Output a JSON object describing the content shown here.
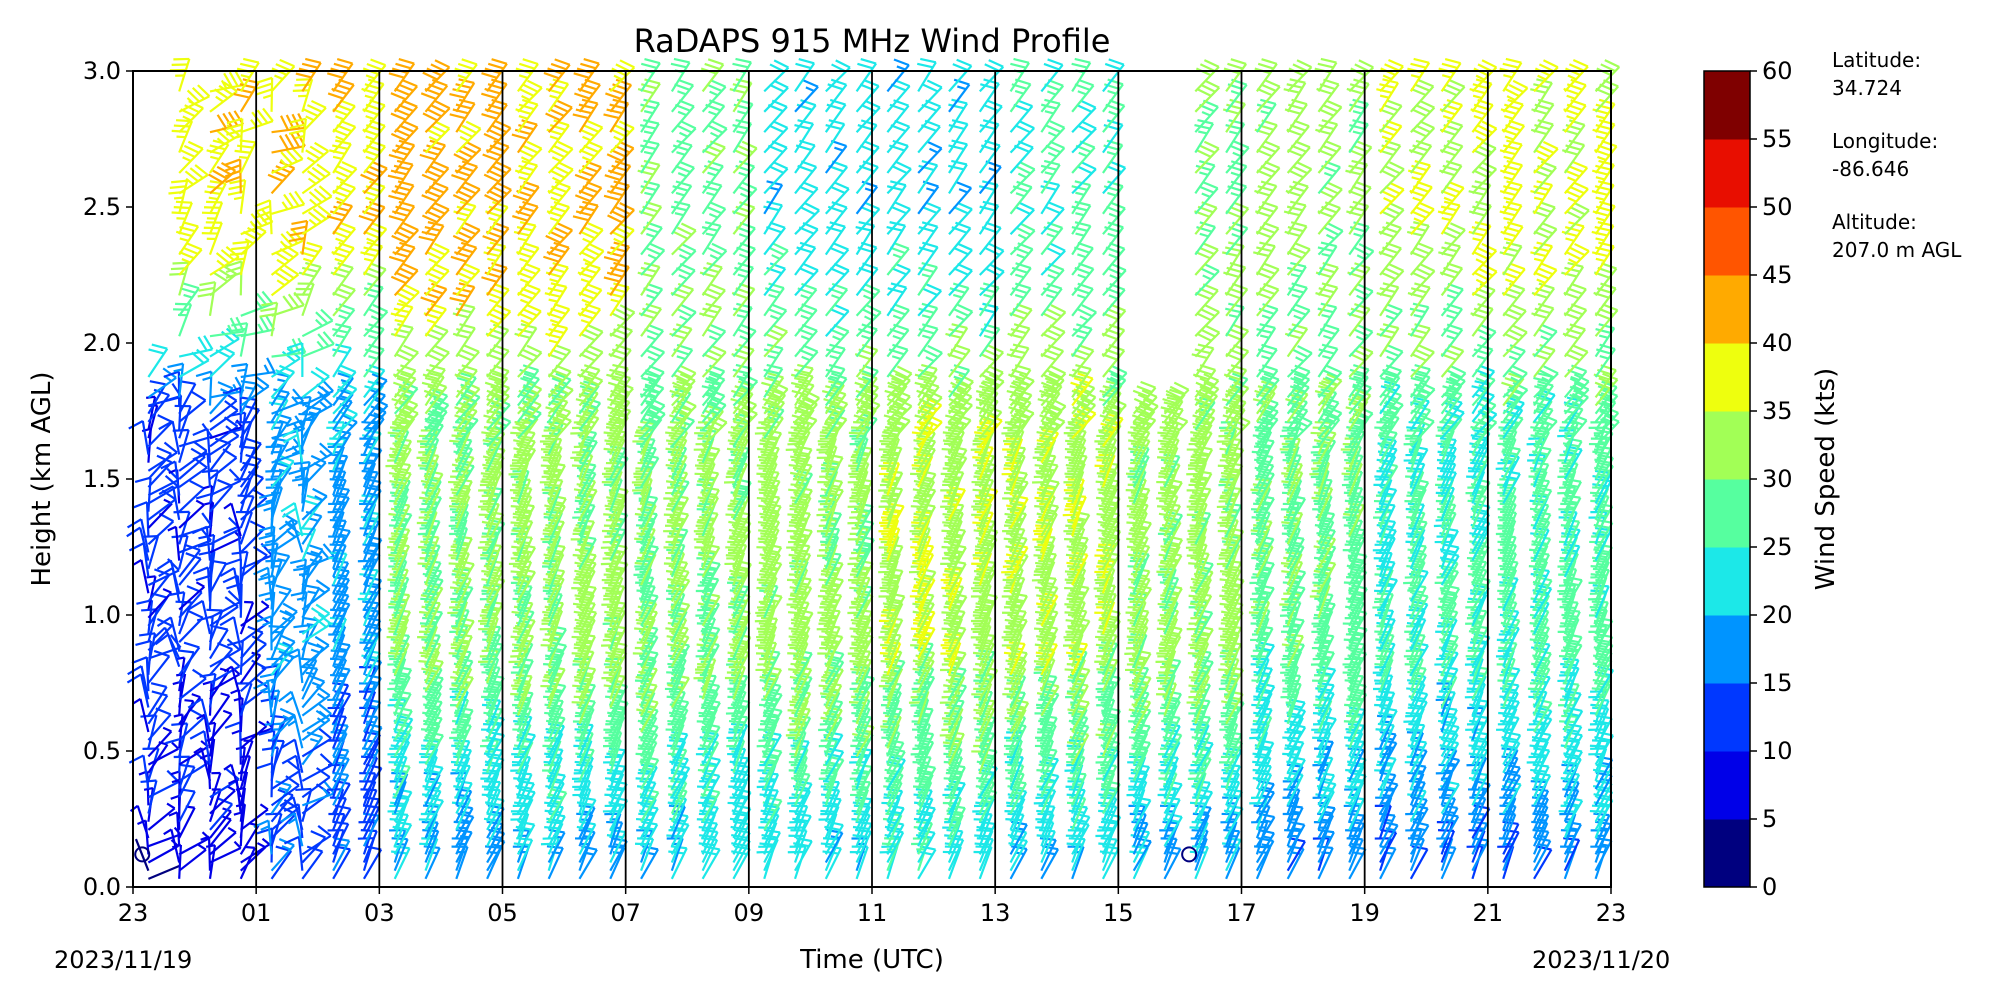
{
  "chart_data": {
    "type": "wind-barb profile",
    "title": "RaDAPS 915 MHz Wind Profile",
    "xlabel": "Time (UTC)",
    "ylabel": "Height (km AGL)",
    "x_tick_labels": [
      "23",
      "01",
      "03",
      "05",
      "07",
      "09",
      "11",
      "13",
      "15",
      "17",
      "19",
      "21",
      "23"
    ],
    "x_ticks_hours": [
      0,
      2,
      4,
      6,
      8,
      10,
      12,
      14,
      16,
      18,
      20,
      22,
      24
    ],
    "xlim_hours": [
      0,
      24
    ],
    "start_date_label": "2023/11/19",
    "end_date_label": "2023/11/20",
    "y_tick_labels": [
      "0.0",
      "0.5",
      "1.0",
      "1.5",
      "2.0",
      "2.5",
      "3.0"
    ],
    "ylim": [
      0,
      3.0
    ],
    "vertical_gridlines_hours": [
      2,
      4,
      6,
      8,
      10,
      12,
      14,
      16,
      18,
      20,
      22
    ],
    "colorbar": {
      "label": "Wind Speed (kts)",
      "ticks": [
        "0",
        "5",
        "10",
        "15",
        "20",
        "25",
        "30",
        "35",
        "40",
        "45",
        "50",
        "55",
        "60"
      ],
      "bins": [
        {
          "min": 0,
          "max": 5,
          "color": "#00007f"
        },
        {
          "min": 5,
          "max": 10,
          "color": "#0000e8"
        },
        {
          "min": 10,
          "max": 15,
          "color": "#0038ff"
        },
        {
          "min": 15,
          "max": 20,
          "color": "#0094ff"
        },
        {
          "min": 20,
          "max": 25,
          "color": "#1ce8e8"
        },
        {
          "min": 25,
          "max": 30,
          "color": "#56ff9f"
        },
        {
          "min": 30,
          "max": 35,
          "color": "#a2ff56"
        },
        {
          "min": 35,
          "max": 40,
          "color": "#eeff0e"
        },
        {
          "min": 40,
          "max": 45,
          "color": "#ffaa00"
        },
        {
          "min": 45,
          "max": 50,
          "color": "#ff5500"
        },
        {
          "min": 50,
          "max": 55,
          "color": "#e80e00"
        },
        {
          "min": 55,
          "max": 60,
          "color": "#7f0000"
        }
      ]
    },
    "columns_per_hour": 2,
    "column_offset_hours": 0.25,
    "profiles_top_km": [
      1.95,
      3.0,
      3.0,
      3.0,
      3.0,
      3.0,
      3.0,
      3.0,
      3.0,
      3.0,
      3.0,
      3.0,
      3.0,
      3.0,
      3.0,
      3.0,
      3.0,
      3.0,
      3.0,
      3.0,
      3.0,
      3.0,
      3.0,
      3.0,
      3.0,
      3.0,
      3.0,
      3.0,
      3.0,
      3.0,
      3.0,
      3.0,
      1.75,
      1.75,
      3.0,
      3.0,
      3.0,
      3.0,
      3.0,
      3.0,
      3.0,
      3.0,
      3.0,
      3.0,
      3.0,
      3.0,
      3.0,
      3.0
    ],
    "calm_markers": [
      {
        "hours": 0.15,
        "height_km": 0.12
      },
      {
        "hours": 17.15,
        "height_km": 0.12
      }
    ],
    "speed_profile_by_period": [
      {
        "hours": [
          0,
          2
        ],
        "low": 7,
        "mid": 12,
        "high": 38
      },
      {
        "hours": [
          2,
          4
        ],
        "low": 12,
        "mid": 18,
        "high": 38
      },
      {
        "hours": [
          4,
          6
        ],
        "low": 17,
        "mid": 30,
        "high": 42
      },
      {
        "hours": [
          6,
          8
        ],
        "low": 19,
        "mid": 31,
        "high": 40
      },
      {
        "hours": [
          8,
          10
        ],
        "low": 20,
        "mid": 31,
        "high": 28
      },
      {
        "hours": [
          10,
          12
        ],
        "low": 21,
        "mid": 32,
        "high": 22
      },
      {
        "hours": [
          12,
          14
        ],
        "low": 22,
        "mid": 33,
        "high": 22
      },
      {
        "hours": [
          14,
          16
        ],
        "low": 20,
        "mid": 33,
        "high": 26
      },
      {
        "hours": [
          16,
          18
        ],
        "low": 18,
        "mid": 32,
        "high": 30
      },
      {
        "hours": [
          18,
          20
        ],
        "low": 16,
        "mid": 28,
        "high": 32
      },
      {
        "hours": [
          20,
          22
        ],
        "low": 15,
        "mid": 25,
        "high": 36
      },
      {
        "hours": [
          22,
          24
        ],
        "low": 16,
        "mid": 27,
        "high": 36
      }
    ]
  },
  "station_info": {
    "latitude_label": "Latitude:",
    "latitude_value": "34.724",
    "longitude_label": "Longitude:",
    "longitude_value": "-86.646",
    "altitude_label": "Altitude:",
    "altitude_value": "207.0 m AGL"
  }
}
